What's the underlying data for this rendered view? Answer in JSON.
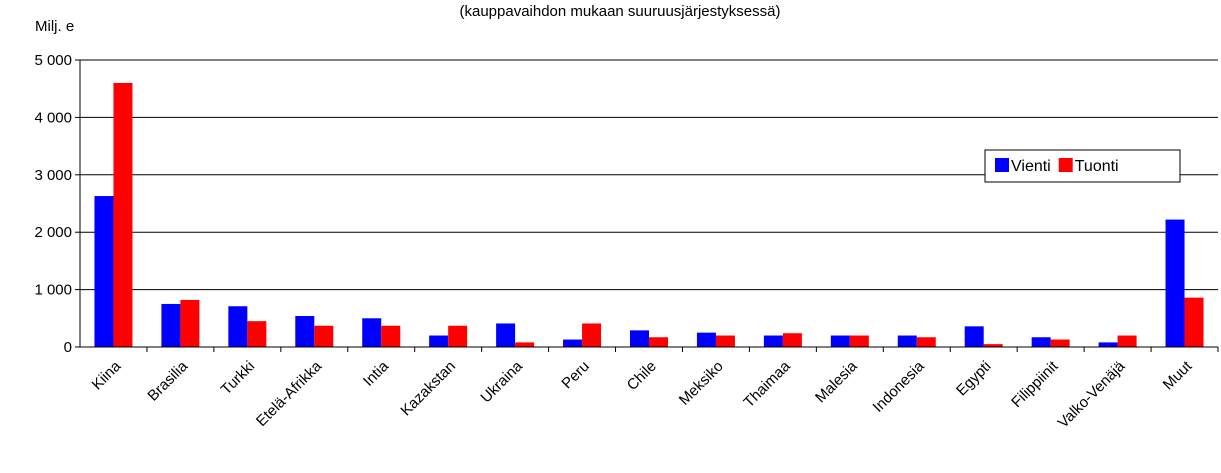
{
  "chart_data": {
    "type": "bar",
    "subtitle": "(kauppavaihdon mukaan suuruusjärjestyksessä)",
    "y_label": "Milj. e",
    "categories": [
      "Kiina",
      "Brasilia",
      "Turkki",
      "Etelä-Afrikka",
      "Intia",
      "Kazakstan",
      "Ukraina",
      "Peru",
      "Chile",
      "Meksiko",
      "Thaimaa",
      "Malesia",
      "Indonesia",
      "Egypti",
      "Filippiinit",
      "Valko-Venäjä",
      "Muut"
    ],
    "series": [
      {
        "name": "Vienti",
        "color": "#0000ff",
        "values": [
          2630,
          750,
          710,
          540,
          500,
          200,
          410,
          130,
          290,
          250,
          200,
          200,
          200,
          360,
          170,
          80,
          2220
        ]
      },
      {
        "name": "Tuonti",
        "color": "#ff0000",
        "values": [
          4600,
          820,
          450,
          370,
          370,
          370,
          80,
          410,
          170,
          200,
          240,
          200,
          170,
          50,
          130,
          200,
          860
        ]
      }
    ],
    "ylim": [
      0,
      5000
    ],
    "yticks": [
      0,
      {
        "value": 1000,
        "label": "1 000"
      },
      {
        "value": 2000,
        "label": "2 000"
      },
      {
        "value": 3000,
        "label": "3 000"
      },
      {
        "value": 4000,
        "label": "4 000"
      },
      {
        "value": 5000,
        "label": "5 000"
      }
    ],
    "grid": true
  }
}
